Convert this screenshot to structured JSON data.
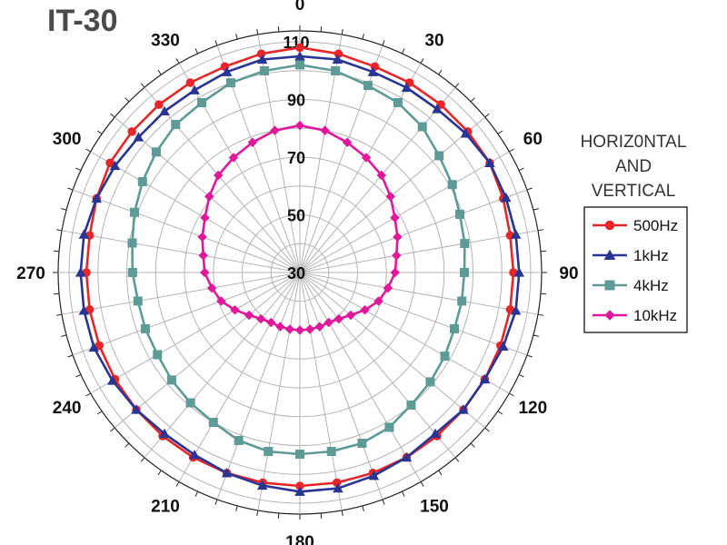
{
  "chart_data": {
    "type": "polar-line",
    "title": "IT-30",
    "angle_labels": [
      "0",
      "30",
      "60",
      "90",
      "120",
      "150",
      "180",
      "210",
      "240",
      "270",
      "300",
      "330"
    ],
    "radial_labels": [
      "30",
      "50",
      "70",
      "90",
      "110"
    ],
    "radial_range": [
      30,
      110
    ],
    "angle_step_deg": 10,
    "grid": true,
    "legend_title": [
      "HORIZ0NTAL",
      "AND",
      "VERTICAL"
    ],
    "legend_position": "right",
    "series": [
      {
        "name": "500Hz",
        "color": "#e8262a",
        "marker": "circle",
        "angles": [
          0,
          10,
          20,
          30,
          40,
          50,
          60,
          70,
          80,
          90,
          100,
          110,
          120,
          130,
          140,
          150,
          160,
          170,
          180,
          190,
          200,
          210,
          220,
          230,
          240,
          250,
          260,
          270,
          280,
          290,
          300,
          310,
          320,
          330,
          340,
          350
        ],
        "values": [
          108,
          107,
          106,
          106,
          106,
          106,
          106,
          105,
          104,
          104,
          104,
          104,
          104,
          104,
          104,
          104,
          104,
          104,
          104,
          104,
          104,
          104,
          104,
          104,
          104,
          104,
          104,
          104,
          104,
          105,
          106,
          106,
          106,
          106,
          106,
          107
        ]
      },
      {
        "name": "1kHz",
        "color": "#283593",
        "marker": "triangle",
        "angles": [
          0,
          10,
          20,
          30,
          40,
          50,
          60,
          70,
          80,
          90,
          100,
          110,
          120,
          130,
          140,
          150,
          160,
          170,
          180,
          190,
          200,
          210,
          220,
          230,
          240,
          250,
          260,
          270,
          280,
          290,
          300,
          310,
          320,
          330,
          340,
          350
        ],
        "values": [
          105,
          105,
          104,
          104,
          104,
          105,
          106,
          106,
          106,
          106,
          106,
          105,
          104,
          104,
          103,
          104,
          105,
          106,
          106,
          105,
          104,
          103,
          103,
          104,
          105,
          106,
          106,
          106,
          106,
          105,
          104,
          103,
          103,
          103,
          104,
          105
        ]
      },
      {
        "name": "4kHz",
        "color": "#5e9a96",
        "marker": "square",
        "angles": [
          0,
          10,
          20,
          30,
          40,
          50,
          60,
          70,
          80,
          90,
          100,
          110,
          120,
          130,
          140,
          150,
          160,
          170,
          180,
          190,
          200,
          210,
          220,
          230,
          240,
          250,
          260,
          270,
          280,
          290,
          300,
          310,
          320,
          330,
          340,
          350
        ],
        "values": [
          102,
          101,
          99,
          98,
          96,
          93,
          91,
          89,
          88,
          87,
          87,
          87,
          88,
          89,
          90,
          92,
          93,
          93,
          93,
          93,
          92,
          90,
          89,
          88,
          87,
          87,
          87,
          88,
          89,
          91,
          93,
          95,
          97,
          98,
          100,
          101
        ]
      },
      {
        "name": "10kHz",
        "color": "#e0189a",
        "marker": "diamond",
        "angles": [
          0,
          10,
          20,
          30,
          40,
          50,
          60,
          70,
          80,
          90,
          100,
          110,
          120,
          130,
          140,
          150,
          160,
          170,
          180,
          190,
          200,
          210,
          220,
          230,
          240,
          250,
          260,
          270,
          280,
          290,
          300,
          310,
          320,
          330,
          340,
          350
        ],
        "values": [
          81,
          80,
          78,
          76,
          74,
          71,
          68,
          66,
          64,
          63,
          61,
          59,
          56,
          53,
          51,
          50,
          50,
          50,
          50,
          50,
          50,
          50,
          51,
          53,
          56,
          59,
          61,
          63,
          64,
          66,
          68,
          71,
          74,
          76,
          78,
          80
        ]
      }
    ]
  }
}
